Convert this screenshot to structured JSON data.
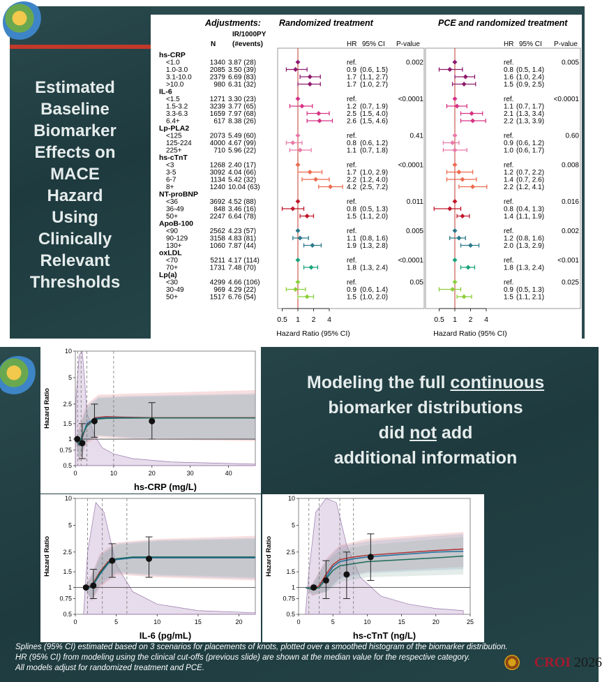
{
  "top_slide": {
    "title_lines": [
      "Estimated",
      "Baseline",
      "Biomarker",
      "Effects on",
      "MACE",
      "Hazard",
      "Using",
      "Clinically",
      "Relevant",
      "Thresholds"
    ],
    "forest": {
      "header_adjustments": "Adjustments:",
      "header_randomized": "Randomized treatment",
      "header_pce": "PCE and randomized treatment",
      "col_n": "N",
      "col_ir": "IR/1000PY",
      "col_ir2": "(#events)",
      "col_hr": "HR",
      "col_ci": "95% CI",
      "col_p": "P-value",
      "axis_title": "Hazard Ratio (95% CI)",
      "axis_ticks": [
        "0.5",
        "1",
        "2",
        "4"
      ],
      "groups": [
        {
          "name": "hs-CRP",
          "color": "#8e1a6e",
          "p1": "0.002",
          "p2": "0.005",
          "rows": [
            {
              "label": "<1.0",
              "n": "1340",
              "ir": "3.87 (28)",
              "hr1": "ref.",
              "ci1": "",
              "hr2": "ref.",
              "ci2": "",
              "v1": 1,
              "l1": 1,
              "u1": 1,
              "v2": 1,
              "l2": 1,
              "u2": 1
            },
            {
              "label": "1.0-3.0",
              "n": "2085",
              "ir": "3.50 (39)",
              "hr1": "0.9",
              "ci1": "(0.6, 1.5)",
              "hr2": "0.8",
              "ci2": "(0.5, 1.4)",
              "v1": 0.9,
              "l1": 0.6,
              "u1": 1.5,
              "v2": 0.8,
              "l2": 0.5,
              "u2": 1.4
            },
            {
              "label": "3.1-10.0",
              "n": "2379",
              "ir": "6.69 (83)",
              "hr1": "1.7",
              "ci1": "(1.1, 2.7)",
              "hr2": "1.6",
              "ci2": "(1.0, 2.4)",
              "v1": 1.7,
              "l1": 1.1,
              "u1": 2.7,
              "v2": 1.6,
              "l2": 1.0,
              "u2": 2.4
            },
            {
              "label": ">10.0",
              "n": "980",
              "ir": "6.31 (32)",
              "hr1": "1.7",
              "ci1": "(1.0, 2.7)",
              "hr2": "1.5",
              "ci2": "(0.9, 2.5)",
              "v1": 1.7,
              "l1": 1.0,
              "u1": 2.7,
              "v2": 1.5,
              "l2": 0.9,
              "u2": 2.5
            }
          ]
        },
        {
          "name": "IL-6",
          "color": "#d63384",
          "p1": "<0.0001",
          "p2": "<0.0001",
          "rows": [
            {
              "label": "<1.5",
              "n": "1271",
              "ir": "3.30 (23)",
              "hr1": "ref.",
              "ci1": "",
              "hr2": "ref.",
              "ci2": "",
              "v1": 1,
              "l1": 1,
              "u1": 1,
              "v2": 1,
              "l2": 1,
              "u2": 1
            },
            {
              "label": "1.5-3.2",
              "n": "3239",
              "ir": "3.77 (65)",
              "hr1": "1.2",
              "ci1": "(0.7, 1.9)",
              "hr2": "1.1",
              "ci2": "(0.7, 1.7)",
              "v1": 1.2,
              "l1": 0.7,
              "u1": 1.9,
              "v2": 1.1,
              "l2": 0.7,
              "u2": 1.7
            },
            {
              "label": "3.3-6.3",
              "n": "1659",
              "ir": "7.97 (68)",
              "hr1": "2.5",
              "ci1": "(1.5, 4.0)",
              "hr2": "2.1",
              "ci2": "(1.3, 3.4)",
              "v1": 2.5,
              "l1": 1.5,
              "u1": 4.0,
              "v2": 2.1,
              "l2": 1.3,
              "u2": 3.4
            },
            {
              "label": "6.4+",
              "n": "617",
              "ir": "8.38 (26)",
              "hr1": "2.6",
              "ci1": "(1.5, 4.6)",
              "hr2": "2.2",
              "ci2": "(1.3, 3.9)",
              "v1": 2.6,
              "l1": 1.5,
              "u1": 4.6,
              "v2": 2.2,
              "l2": 1.3,
              "u2": 3.9
            }
          ]
        },
        {
          "name": "Lp-PLA2",
          "color": "#e87aa8",
          "p1": "0.41",
          "p2": "0.60",
          "rows": [
            {
              "label": "<125",
              "n": "2073",
              "ir": "5.49 (60)",
              "hr1": "ref.",
              "ci1": "",
              "hr2": "ref.",
              "ci2": "",
              "v1": 1,
              "l1": 1,
              "u1": 1,
              "v2": 1,
              "l2": 1,
              "u2": 1
            },
            {
              "label": "125-224",
              "n": "4000",
              "ir": "4.67 (99)",
              "hr1": "0.8",
              "ci1": "(0.6, 1.2)",
              "hr2": "0.9",
              "ci2": "(0.6, 1.2)",
              "v1": 0.8,
              "l1": 0.6,
              "u1": 1.2,
              "v2": 0.9,
              "l2": 0.6,
              "u2": 1.2
            },
            {
              "label": "225+",
              "n": "710",
              "ir": "5.96 (22)",
              "hr1": "1.1",
              "ci1": "(0.7, 1.8)",
              "hr2": "1.0",
              "ci2": "(0.6, 1.7)",
              "v1": 1.1,
              "l1": 0.7,
              "u1": 1.8,
              "v2": 1.0,
              "l2": 0.6,
              "u2": 1.7
            }
          ]
        },
        {
          "name": "hs-cTnT",
          "color": "#ec6b4f",
          "p1": "<0.0001",
          "p2": "0.008",
          "rows": [
            {
              "label": "<3",
              "n": "1268",
              "ir": "2.40 (17)",
              "hr1": "ref.",
              "ci1": "",
              "hr2": "ref.",
              "ci2": "",
              "v1": 1,
              "l1": 1,
              "u1": 1,
              "v2": 1,
              "l2": 1,
              "u2": 1
            },
            {
              "label": "3-5",
              "n": "3092",
              "ir": "4.04 (66)",
              "hr1": "1.7",
              "ci1": "(1.0, 2.9)",
              "hr2": "1.2",
              "ci2": "(0.7, 2.2)",
              "v1": 1.7,
              "l1": 1.0,
              "u1": 2.9,
              "v2": 1.2,
              "l2": 0.7,
              "u2": 2.2
            },
            {
              "label": "6-7",
              "n": "1134",
              "ir": "5.42 (32)",
              "hr1": "2.2",
              "ci1": "(1.2, 4.0)",
              "hr2": "1.4",
              "ci2": "(0.7, 2.6)",
              "v1": 2.2,
              "l1": 1.2,
              "u1": 4.0,
              "v2": 1.4,
              "l2": 0.7,
              "u2": 2.6
            },
            {
              "label": "8+",
              "n": "1240",
              "ir": "10.04 (63)",
              "hr1": "4.2",
              "ci1": "(2.5, 7.2)",
              "hr2": "2.2",
              "ci2": "(1.2, 4.1)",
              "v1": 4.2,
              "l1": 2.5,
              "u1": 7.2,
              "v2": 2.2,
              "l2": 1.2,
              "u2": 4.1
            }
          ]
        },
        {
          "name": "NT-proBNP",
          "color": "#c0182a",
          "p1": "0.011",
          "p2": "0.016",
          "rows": [
            {
              "label": "<36",
              "n": "3692",
              "ir": "4.52 (88)",
              "hr1": "ref.",
              "ci1": "",
              "hr2": "ref.",
              "ci2": "",
              "v1": 1,
              "l1": 1,
              "u1": 1,
              "v2": 1,
              "l2": 1,
              "u2": 1
            },
            {
              "label": "36-49",
              "n": "848",
              "ir": "3.46 (16)",
              "hr1": "0.8",
              "ci1": "(0.5, 1.3)",
              "hr2": "0.8",
              "ci2": "(0.4, 1.3)",
              "v1": 0.8,
              "l1": 0.5,
              "u1": 1.3,
              "v2": 0.8,
              "l2": 0.4,
              "u2": 1.3
            },
            {
              "label": "50+",
              "n": "2247",
              "ir": "6.64 (78)",
              "hr1": "1.5",
              "ci1": "(1.1, 2.0)",
              "hr2": "1.4",
              "ci2": "(1.1, 1.9)",
              "v1": 1.5,
              "l1": 1.1,
              "u1": 2.0,
              "v2": 1.4,
              "l2": 1.1,
              "u2": 1.9
            }
          ]
        },
        {
          "name": "ApoB-100",
          "color": "#2a7a8a",
          "p1": "0.005",
          "p2": "0.002",
          "rows": [
            {
              "label": "<90",
              "n": "2562",
              "ir": "4.23 (57)",
              "hr1": "ref.",
              "ci1": "",
              "hr2": "ref.",
              "ci2": "",
              "v1": 1,
              "l1": 1,
              "u1": 1,
              "v2": 1,
              "l2": 1,
              "u2": 1
            },
            {
              "label": "90-129",
              "n": "3158",
              "ir": "4.83 (81)",
              "hr1": "1.1",
              "ci1": "(0.8, 1.6)",
              "hr2": "1.2",
              "ci2": "(0.8, 1.6)",
              "v1": 1.1,
              "l1": 0.8,
              "u1": 1.6,
              "v2": 1.2,
              "l2": 0.8,
              "u2": 1.6
            },
            {
              "label": "130+",
              "n": "1060",
              "ir": "7.87 (44)",
              "hr1": "1.9",
              "ci1": "(1.3, 2.8)",
              "hr2": "2.0",
              "ci2": "(1.3, 2.9)",
              "v1": 1.9,
              "l1": 1.3,
              "u1": 2.8,
              "v2": 2.0,
              "l2": 1.3,
              "u2": 2.9
            }
          ]
        },
        {
          "name": "oxLDL",
          "color": "#1aa37a",
          "p1": "<0.0001",
          "p2": "<0.001",
          "rows": [
            {
              "label": "<70",
              "n": "5211",
              "ir": "4.17 (114)",
              "hr1": "ref.",
              "ci1": "",
              "hr2": "ref.",
              "ci2": "",
              "v1": 1,
              "l1": 1,
              "u1": 1,
              "v2": 1,
              "l2": 1,
              "u2": 1
            },
            {
              "label": "70+",
              "n": "1731",
              "ir": "7.48 (70)",
              "hr1": "1.8",
              "ci1": "(1.3, 2.4)",
              "hr2": "1.8",
              "ci2": "(1.3, 2.4)",
              "v1": 1.8,
              "l1": 1.3,
              "u1": 2.4,
              "v2": 1.8,
              "l2": 1.3,
              "u2": 2.4
            }
          ]
        },
        {
          "name": "Lp(a)",
          "color": "#8ccf3a",
          "p1": "0.05",
          "p2": "0.025",
          "rows": [
            {
              "label": "<30",
              "n": "4299",
              "ir": "4.66 (106)",
              "hr1": "ref.",
              "ci1": "",
              "hr2": "ref.",
              "ci2": "",
              "v1": 1,
              "l1": 1,
              "u1": 1,
              "v2": 1,
              "l2": 1,
              "u2": 1
            },
            {
              "label": "30-49",
              "n": "969",
              "ir": "4.29 (22)",
              "hr1": "0.9",
              "ci1": "(0.6, 1.4)",
              "hr2": "0.9",
              "ci2": "(0.5, 1.3)",
              "v1": 0.9,
              "l1": 0.6,
              "u1": 1.4,
              "v2": 0.9,
              "l2": 0.5,
              "u2": 1.3
            },
            {
              "label": "50+",
              "n": "1517",
              "ir": "6.76 (54)",
              "hr1": "1.5",
              "ci1": "(1.0, 2.0)",
              "hr2": "1.5",
              "ci2": "(1.1, 2.1)",
              "v1": 1.5,
              "l1": 1.0,
              "u1": 2.0,
              "v2": 1.5,
              "l2": 1.1,
              "u2": 2.1
            }
          ]
        }
      ]
    }
  },
  "bottom_slide": {
    "message_line1_pre": "Modeling the full ",
    "message_line1_u": "continuous",
    "message_line2": "biomarker distributions",
    "message_line3_pre": "did ",
    "message_line3_u": "not",
    "message_line3_post": " add",
    "message_line4": "additional information",
    "footnote_lines": [
      "Splines (95% CI) estimated based on 3 scenarios for placements of knots, plotted over a smoothed histogram of the biomarker distribution.",
      "HR (95% CI) from modeling using the clinical cut-offs (previous slide) are shown at the median value for the respective category.",
      "All models adjust for randomized treatment and PCE."
    ],
    "logo_text": "CROI",
    "logo_year": "2026"
  },
  "colors": {
    "slide_bg": "#22403f",
    "ref_line": "#c0392b",
    "spline_red": "#b03030",
    "spline_blue": "#1f6f9f",
    "spline_teal": "#1e6b5a",
    "histogram": "#b89ac6"
  },
  "chart_data": [
    {
      "type": "line",
      "title": "",
      "xlabel": "hs-CRP (mg/L)",
      "ylabel": "Hazard Ratio",
      "xlim": [
        0,
        47
      ],
      "ylim": [
        0.5,
        10
      ],
      "x_ticks": [
        "0",
        "10",
        "20",
        "30",
        "40"
      ],
      "y_ticks": [
        "0.5",
        "0.75",
        "1",
        "1.5",
        "2.5",
        "5",
        "10"
      ],
      "knots": [
        0.6,
        1.5,
        3.0,
        10.0
      ],
      "series": [
        {
          "x": [
            0,
            1,
            2,
            3,
            5,
            8,
            12,
            20,
            30,
            47
          ],
          "values": [
            1.0,
            0.85,
            1.1,
            1.45,
            1.75,
            1.8,
            1.78,
            1.75,
            1.75,
            1.75
          ]
        },
        {
          "x": [
            0,
            1,
            2,
            3,
            5,
            8,
            12,
            20,
            30,
            47
          ],
          "values": [
            1.0,
            0.86,
            1.12,
            1.5,
            1.72,
            1.75,
            1.75,
            1.74,
            1.74,
            1.74
          ]
        },
        {
          "x": [
            0,
            1,
            2,
            3,
            5,
            8,
            12,
            20,
            30,
            47
          ],
          "values": [
            1.0,
            0.88,
            1.15,
            1.4,
            1.68,
            1.72,
            1.73,
            1.74,
            1.74,
            1.74
          ]
        }
      ],
      "points": [
        {
          "x": 0.5,
          "hr": 1.0,
          "l": 1.0,
          "u": 1.0
        },
        {
          "x": 1.8,
          "hr": 0.9,
          "l": 0.6,
          "u": 1.5
        },
        {
          "x": 5.0,
          "hr": 1.6,
          "l": 1.05,
          "u": 2.5
        },
        {
          "x": 20.0,
          "hr": 1.6,
          "l": 1.0,
          "u": 2.6
        }
      ]
    },
    {
      "type": "line",
      "title": "",
      "xlabel": "IL-6 (pg/mL)",
      "ylabel": "Hazard Ratio",
      "xlim": [
        0,
        22
      ],
      "ylim": [
        0.5,
        10
      ],
      "x_ticks": [
        "0",
        "5",
        "10",
        "15",
        "20"
      ],
      "y_ticks": [
        "0.5",
        "0.75",
        "1",
        "1.5",
        "2.5",
        "5",
        "10"
      ],
      "knots": [
        1.5,
        3.3,
        6.3
      ],
      "series": [
        {
          "x": [
            1,
            2,
            3,
            4,
            5,
            7,
            10,
            15,
            22
          ],
          "values": [
            1.0,
            1.05,
            1.5,
            1.95,
            2.1,
            2.15,
            2.15,
            2.15,
            2.15
          ]
        },
        {
          "x": [
            1,
            2,
            3,
            4,
            5,
            7,
            10,
            15,
            22
          ],
          "values": [
            1.0,
            1.0,
            1.4,
            1.85,
            2.05,
            2.15,
            2.15,
            2.15,
            2.15
          ]
        },
        {
          "x": [
            1,
            2,
            3,
            4,
            5,
            7,
            10,
            15,
            22
          ],
          "values": [
            1.0,
            1.02,
            1.45,
            1.9,
            2.1,
            2.2,
            2.2,
            2.2,
            2.2
          ]
        }
      ],
      "points": [
        {
          "x": 1.3,
          "hr": 1.0,
          "l": 1.0,
          "u": 1.0
        },
        {
          "x": 2.2,
          "hr": 1.05,
          "l": 0.75,
          "u": 1.6
        },
        {
          "x": 4.5,
          "hr": 2.0,
          "l": 1.3,
          "u": 3.1
        },
        {
          "x": 9.0,
          "hr": 2.1,
          "l": 1.3,
          "u": 3.7
        }
      ]
    },
    {
      "type": "line",
      "title": "",
      "xlabel": "hs-cTnT (ng/L)",
      "ylabel": "Hazard Ratio",
      "xlim": [
        0,
        25
      ],
      "ylim": [
        0.5,
        10
      ],
      "x_ticks": [
        "0",
        "5",
        "10",
        "15",
        "20",
        "25"
      ],
      "y_ticks": [
        "0.5",
        "0.75",
        "1",
        "1.5",
        "2.5",
        "5",
        "10"
      ],
      "knots": [
        1.5,
        3,
        6,
        8
      ],
      "series": [
        {
          "x": [
            1,
            2,
            3,
            4,
            5,
            6,
            8,
            10,
            15,
            20,
            24
          ],
          "values": [
            1.0,
            0.95,
            1.05,
            1.4,
            1.8,
            2.05,
            2.2,
            2.3,
            2.45,
            2.6,
            2.7
          ]
        },
        {
          "x": [
            1,
            2,
            3,
            4,
            5,
            6,
            8,
            10,
            15,
            20,
            24
          ],
          "values": [
            1.0,
            0.95,
            1.0,
            1.3,
            1.7,
            1.95,
            2.1,
            2.2,
            2.35,
            2.5,
            2.55
          ]
        },
        {
          "x": [
            1,
            2,
            3,
            4,
            5,
            6,
            8,
            10,
            15,
            20,
            24
          ],
          "values": [
            1.0,
            0.95,
            1.0,
            1.25,
            1.55,
            1.75,
            1.85,
            1.95,
            2.05,
            2.15,
            2.25
          ]
        }
      ],
      "points": [
        {
          "x": 2.2,
          "hr": 1.0,
          "l": 1.0,
          "u": 1.0
        },
        {
          "x": 4.0,
          "hr": 1.2,
          "l": 0.75,
          "u": 2.0
        },
        {
          "x": 7.0,
          "hr": 1.4,
          "l": 0.75,
          "u": 2.5
        },
        {
          "x": 10.5,
          "hr": 2.2,
          "l": 1.2,
          "u": 4.0
        }
      ]
    }
  ]
}
